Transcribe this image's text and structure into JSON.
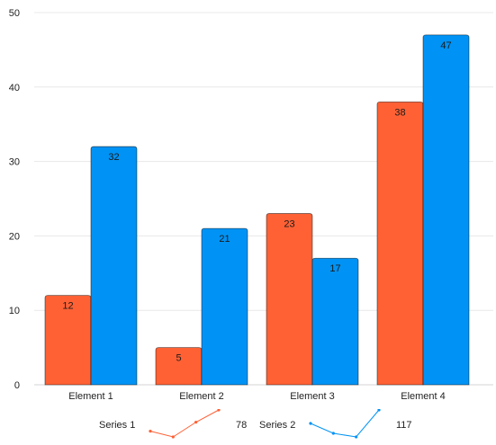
{
  "chart_data": {
    "type": "bar",
    "title": "",
    "xlabel": "",
    "ylabel": "",
    "ylim": [
      0,
      50
    ],
    "yticks": [
      0,
      10,
      20,
      30,
      40,
      50
    ],
    "grid": true,
    "legend_position": "bottom",
    "categories": [
      "Element 1",
      "Element 2",
      "Element 3",
      "Element 4"
    ],
    "series": [
      {
        "name": "Series 1",
        "values": [
          12,
          5,
          23,
          38
        ],
        "color": "#ff6135",
        "total": "78"
      },
      {
        "name": "Series 2",
        "values": [
          32,
          21,
          17,
          47
        ],
        "color": "#0093f5",
        "total": "117"
      }
    ]
  }
}
